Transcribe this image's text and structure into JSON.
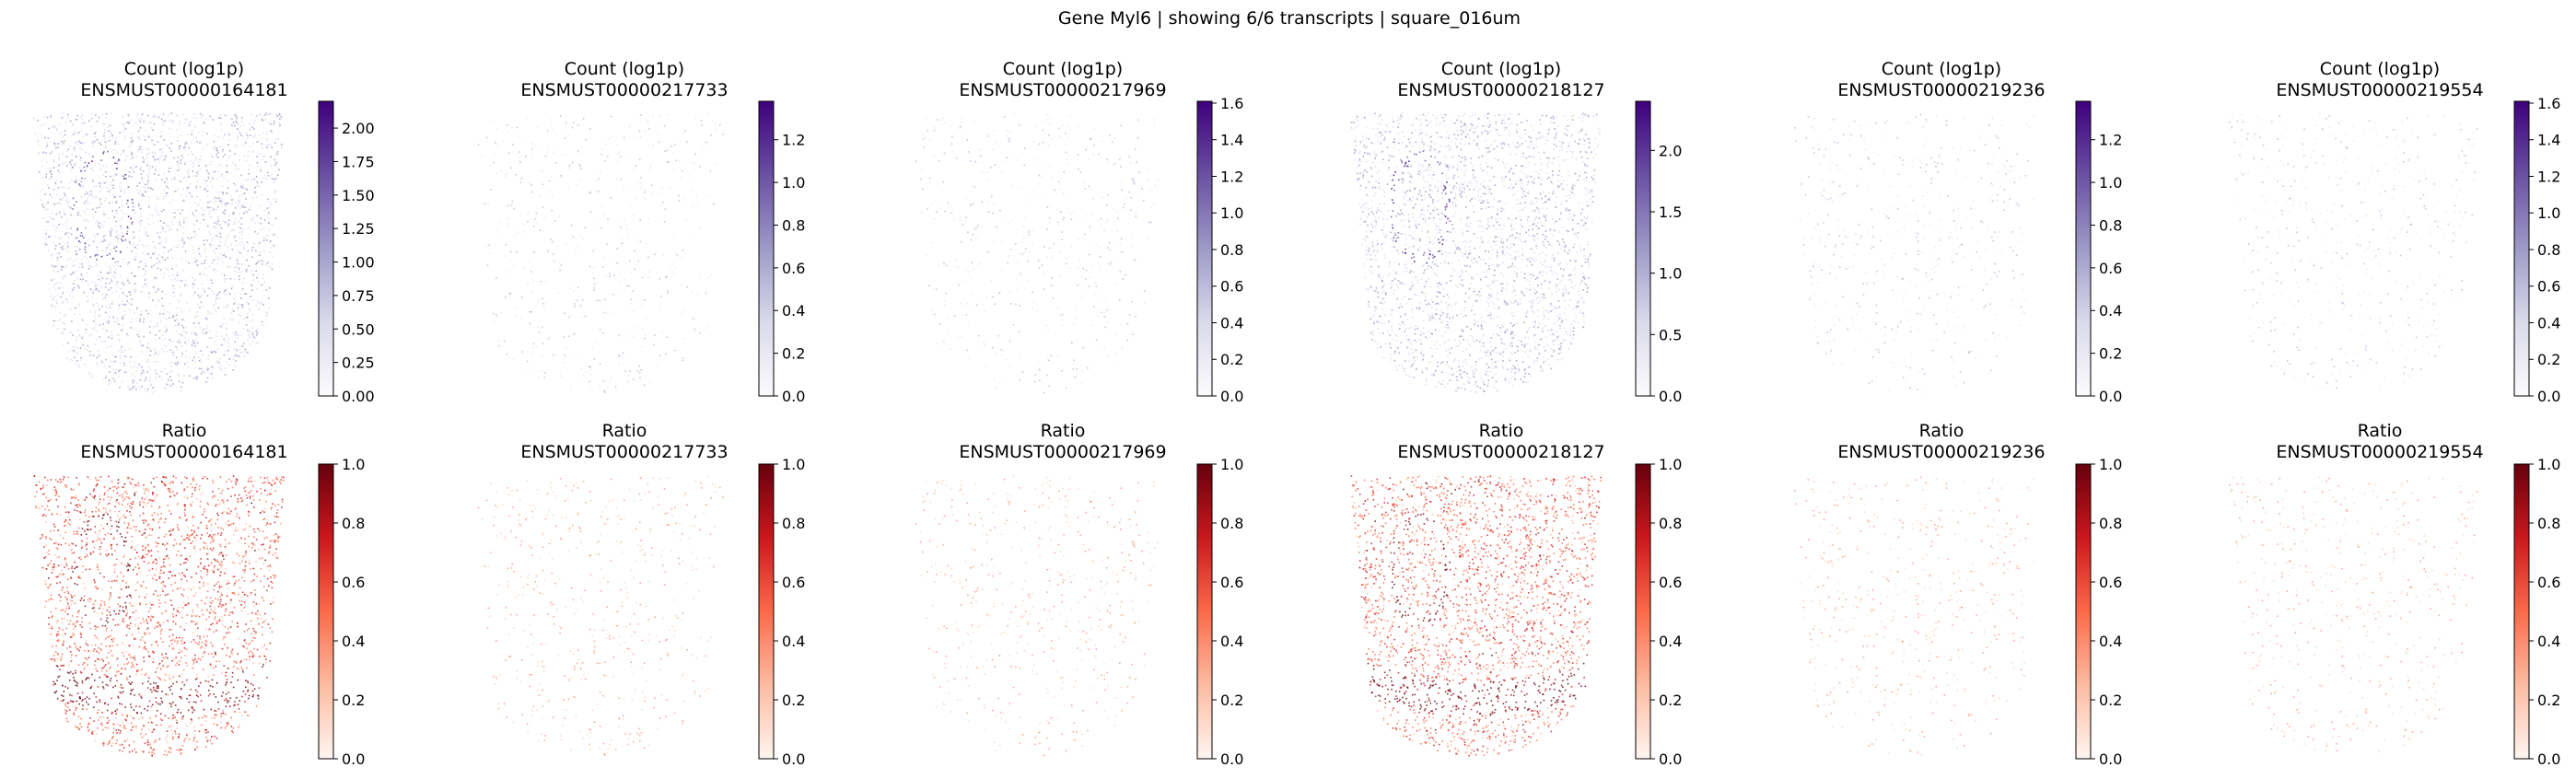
{
  "figure": {
    "suptitle": "Gene Myl6 | showing 6/6 transcripts | square_016um"
  },
  "chart_data": {
    "type": "scatter",
    "title": "Gene Myl6 | showing 6/6 transcripts | square_016um",
    "grid": false,
    "rows": [
      {
        "metric": "Count (log1p)",
        "colormap": "Purples",
        "colors": [
          "#fcfbfd",
          "#dadaeb",
          "#9e9ac8",
          "#6a51a3",
          "#3f007d"
        ],
        "panels": [
          {
            "transcript": "ENSMUST00000164181",
            "vmin": 0,
            "vmax": 2.2,
            "ticks": [
              "0.00",
              "0.25",
              "0.50",
              "0.75",
              "1.00",
              "1.25",
              "1.50",
              "1.75",
              "2.00"
            ],
            "density": "high"
          },
          {
            "transcript": "ENSMUST00000217733",
            "vmin": 0,
            "vmax": 1.38,
            "ticks": [
              "0.0",
              "0.2",
              "0.4",
              "0.6",
              "0.8",
              "1.0",
              "1.2"
            ],
            "density": "low"
          },
          {
            "transcript": "ENSMUST00000217969",
            "vmin": 0,
            "vmax": 1.61,
            "ticks": [
              "0.0",
              "0.2",
              "0.4",
              "0.6",
              "0.8",
              "1.0",
              "1.2",
              "1.4",
              "1.6"
            ],
            "density": "low"
          },
          {
            "transcript": "ENSMUST00000218127",
            "vmin": 0,
            "vmax": 2.4,
            "ticks": [
              "0.0",
              "0.5",
              "1.0",
              "1.5",
              "2.0"
            ],
            "density": "high"
          },
          {
            "transcript": "ENSMUST00000219236",
            "vmin": 0,
            "vmax": 1.38,
            "ticks": [
              "0.0",
              "0.2",
              "0.4",
              "0.6",
              "0.8",
              "1.0",
              "1.2"
            ],
            "density": "low"
          },
          {
            "transcript": "ENSMUST00000219554",
            "vmin": 0,
            "vmax": 1.61,
            "ticks": [
              "0.0",
              "0.2",
              "0.4",
              "0.6",
              "0.8",
              "1.0",
              "1.2",
              "1.4",
              "1.6"
            ],
            "density": "low"
          }
        ]
      },
      {
        "metric": "Ratio",
        "colormap": "Reds",
        "colors": [
          "#fff5f0",
          "#fcbba1",
          "#fb6a4a",
          "#cb181d",
          "#67000d"
        ],
        "panels": [
          {
            "transcript": "ENSMUST00000164181",
            "vmin": 0,
            "vmax": 1.0,
            "ticks": [
              "0.0",
              "0.2",
              "0.4",
              "0.6",
              "0.8",
              "1.0"
            ],
            "density": "high"
          },
          {
            "transcript": "ENSMUST00000217733",
            "vmin": 0,
            "vmax": 1.0,
            "ticks": [
              "0.0",
              "0.2",
              "0.4",
              "0.6",
              "0.8",
              "1.0"
            ],
            "density": "low"
          },
          {
            "transcript": "ENSMUST00000217969",
            "vmin": 0,
            "vmax": 1.0,
            "ticks": [
              "0.0",
              "0.2",
              "0.4",
              "0.6",
              "0.8",
              "1.0"
            ],
            "density": "low"
          },
          {
            "transcript": "ENSMUST00000218127",
            "vmin": 0,
            "vmax": 1.0,
            "ticks": [
              "0.0",
              "0.2",
              "0.4",
              "0.6",
              "0.8",
              "1.0"
            ],
            "density": "high"
          },
          {
            "transcript": "ENSMUST00000219236",
            "vmin": 0,
            "vmax": 1.0,
            "ticks": [
              "0.0",
              "0.2",
              "0.4",
              "0.6",
              "0.8",
              "1.0"
            ],
            "density": "low"
          },
          {
            "transcript": "ENSMUST00000219554",
            "vmin": 0,
            "vmax": 1.0,
            "ticks": [
              "0.0",
              "0.2",
              "0.4",
              "0.6",
              "0.8",
              "1.0"
            ],
            "density": "low"
          }
        ]
      }
    ]
  }
}
